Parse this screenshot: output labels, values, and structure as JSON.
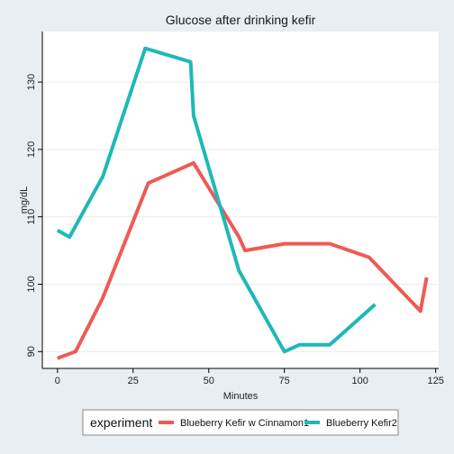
{
  "chart_data": {
    "type": "line",
    "title": "Glucose after drinking kefir",
    "xlabel": "Minutes",
    "ylabel": "mg/dL",
    "xlim": [
      -5,
      126
    ],
    "ylim": [
      87.5,
      137.5
    ],
    "xticks": [
      0,
      25,
      50,
      75,
      100,
      125
    ],
    "yticks": [
      90,
      100,
      110,
      120,
      130
    ],
    "grid": "horizontal",
    "legend_position": "bottom",
    "legend_title": "experiment",
    "series": [
      {
        "name": "Blueberry Kefir w Cinnamon1",
        "color": "#ee5a55",
        "x": [
          0,
          6,
          15,
          30,
          45,
          60,
          62,
          75,
          90,
          103,
          120,
          122
        ],
        "y": [
          89,
          90,
          98,
          115,
          118,
          107,
          105,
          106,
          106,
          104,
          96,
          101
        ]
      },
      {
        "name": "Blueberry Kefir2",
        "color": "#1fb8b8",
        "x": [
          0,
          4,
          15,
          29,
          44,
          45,
          60,
          75,
          80,
          90,
          105
        ],
        "y": [
          108,
          107,
          116,
          135,
          133,
          125,
          102,
          90,
          91,
          91,
          97
        ]
      }
    ]
  }
}
